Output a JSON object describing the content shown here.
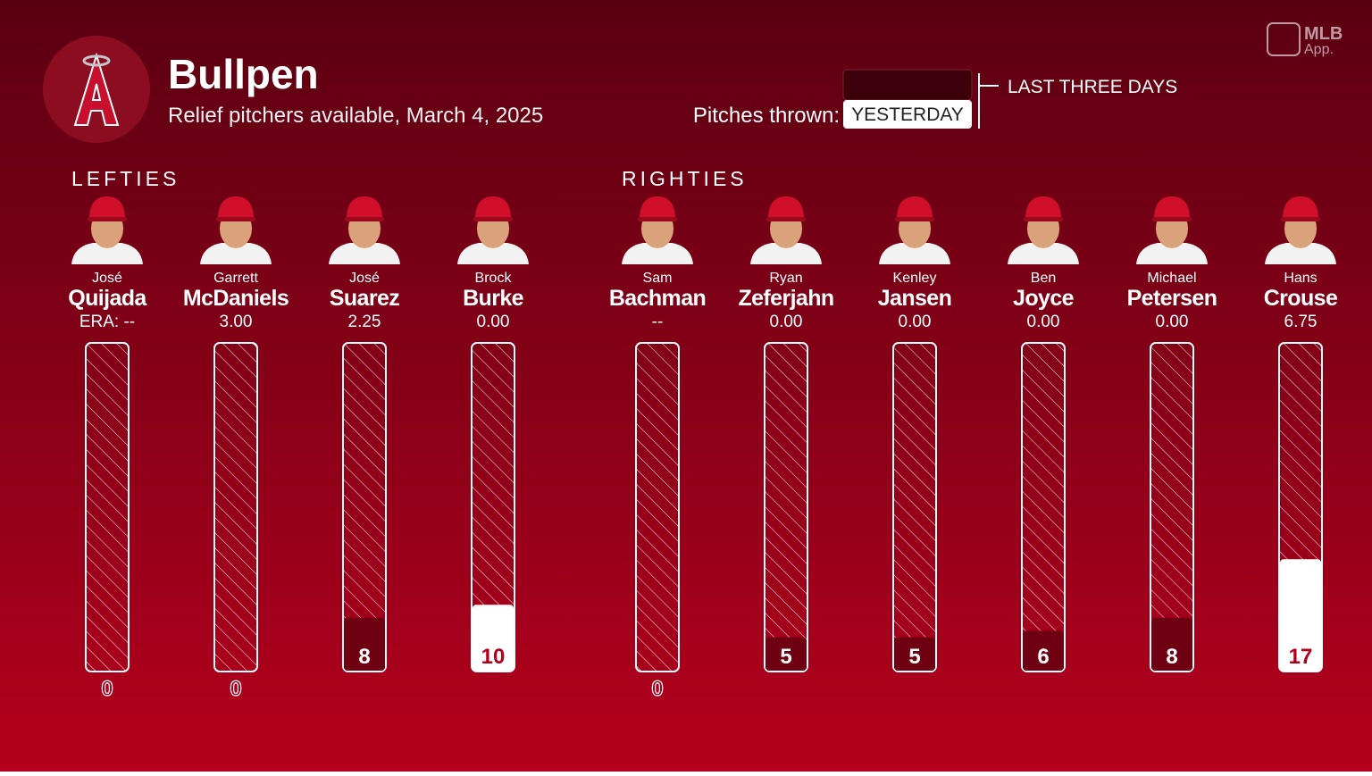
{
  "chart_data": {
    "type": "bar",
    "title": "Bullpen",
    "subtitle": "Relief pitchers available, March 4, 2025",
    "ylim": [
      0,
      50
    ],
    "groups": [
      {
        "name": "LEFTIES",
        "pitchers": [
          {
            "first": "José",
            "last": "Quijada",
            "era": "ERA: --",
            "pitches": 0,
            "color": "#6e0012"
          },
          {
            "first": "Garrett",
            "last": "McDaniels",
            "era": "3.00",
            "pitches": 0,
            "color": "#6e0012"
          },
          {
            "first": "José",
            "last": "Suarez",
            "era": "2.25",
            "pitches": 8,
            "color": "#6e0012"
          },
          {
            "first": "Brock",
            "last": "Burke",
            "era": "0.00",
            "pitches": 10,
            "color": "#ffffff"
          }
        ]
      },
      {
        "name": "RIGHTIES",
        "pitchers": [
          {
            "first": "Sam",
            "last": "Bachman",
            "era": "--",
            "pitches": 0,
            "color": "#6e0012"
          },
          {
            "first": "Ryan",
            "last": "Zeferjahn",
            "era": "0.00",
            "pitches": 5,
            "color": "#6e0012"
          },
          {
            "first": "Kenley",
            "last": "Jansen",
            "era": "0.00",
            "pitches": 5,
            "color": "#6e0012"
          },
          {
            "first": "Ben",
            "last": "Joyce",
            "era": "0.00",
            "pitches": 6,
            "color": "#6e0012"
          },
          {
            "first": "Michael",
            "last": "Petersen",
            "era": "0.00",
            "pitches": 8,
            "color": "#6e0012"
          },
          {
            "first": "Hans",
            "last": "Crouse",
            "era": "6.75",
            "pitches": 17,
            "color": "#ffffff"
          }
        ]
      }
    ]
  },
  "toggle": {
    "label": "Pitches thrown:",
    "options": [
      "YESTERDAY",
      "LAST THREE DAYS"
    ]
  },
  "branding": {
    "name": "MLB",
    "sub": "App."
  }
}
